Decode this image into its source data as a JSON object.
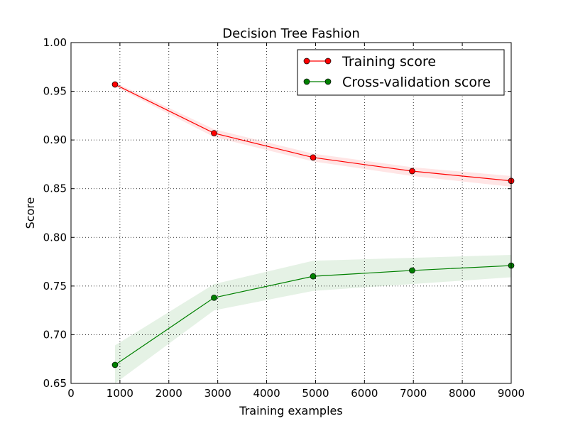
{
  "chart_data": {
    "type": "line",
    "title": "Decision Tree Fashion",
    "xlabel": "Training examples",
    "ylabel": "Score",
    "xlim": [
      0,
      9000
    ],
    "ylim": [
      0.65,
      1.0
    ],
    "xticks": [
      0,
      1000,
      2000,
      3000,
      4000,
      5000,
      6000,
      7000,
      8000,
      9000
    ],
    "yticks": [
      "0.65",
      "0.70",
      "0.75",
      "0.80",
      "0.85",
      "0.90",
      "0.95",
      "1.00"
    ],
    "grid": true,
    "legend_placement": "top-right",
    "x": [
      900,
      2925,
      4950,
      6975,
      9000
    ],
    "series": [
      {
        "name": "Training score",
        "color": "#ff0000",
        "values": [
          0.957,
          0.907,
          0.882,
          0.868,
          0.858
        ],
        "band_lower": [
          0.955,
          0.903,
          0.878,
          0.863,
          0.852
        ],
        "band_upper": [
          0.959,
          0.911,
          0.886,
          0.872,
          0.863
        ]
      },
      {
        "name": "Cross-validation score",
        "color": "#008000",
        "values": [
          0.669,
          0.738,
          0.76,
          0.766,
          0.771
        ],
        "band_lower": [
          0.65,
          0.725,
          0.745,
          0.752,
          0.759
        ],
        "band_upper": [
          0.689,
          0.752,
          0.776,
          0.779,
          0.782
        ]
      }
    ]
  }
}
